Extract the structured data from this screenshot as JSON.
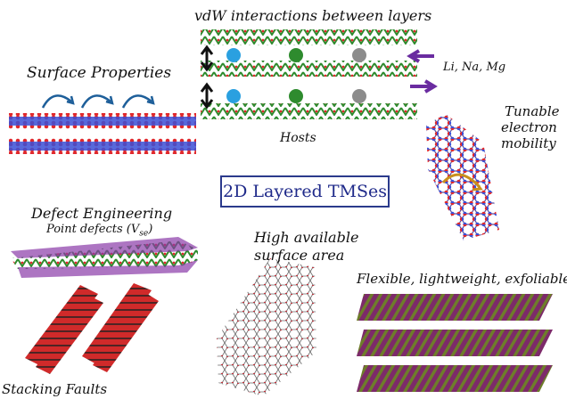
{
  "center_title": "2D Layered TMSes",
  "labels": {
    "vdw": "vdW interactions between layers",
    "ions": "Li, Na, Mg",
    "hosts": "Hosts",
    "surface_properties": "Surface Properties",
    "tunable_1": "Tunable",
    "tunable_2": "electron",
    "tunable_3": "mobility",
    "defect_engineering": "Defect Engineering",
    "point_defects": "Point defects (V",
    "point_defects_sub": "se",
    "point_defects_close": ")",
    "surface_area_1": "High available",
    "surface_area_2": "surface area",
    "flexible": "Flexible, lightweight, exfoliable",
    "stacking_faults": "Stacking Faults"
  },
  "colors": {
    "frame": "#2b3a8c",
    "title_text": "#1f2a8a",
    "chalcogen_red": "#e0282c",
    "metal_blue": "#3b4fd6",
    "metal_green": "#2e8b2e",
    "arrow_purple": "#6a2ca0",
    "ion_blue": "#2aa0e0",
    "ion_green": "#2e8b2e",
    "ion_gray": "#8c8c8c",
    "flex_purple": "#7d2a6a",
    "flex_olive": "#6e7d2a"
  }
}
